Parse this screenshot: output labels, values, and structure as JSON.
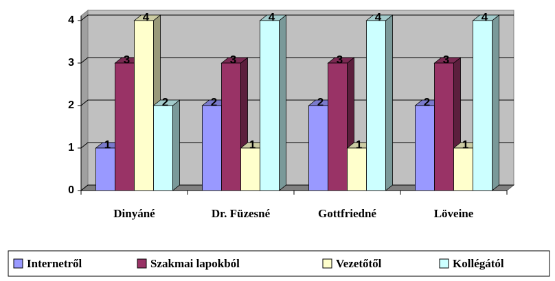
{
  "chart_data": {
    "type": "bar3d",
    "categories": [
      "Dinyáné",
      "Dr. Füzesné",
      "Gottfriedné",
      "Löveine"
    ],
    "series": [
      {
        "name": "Internetről",
        "color": "#9999ff",
        "values": [
          1,
          2,
          2,
          2
        ]
      },
      {
        "name": "Szakmai lapokból",
        "color": "#993366",
        "values": [
          3,
          3,
          3,
          3
        ]
      },
      {
        "name": "Vezetőtől",
        "color": "#ffffcc",
        "values": [
          4,
          1,
          1,
          1
        ]
      },
      {
        "name": "Kollégától",
        "color": "#ccffff",
        "values": [
          2,
          4,
          4,
          4
        ]
      }
    ],
    "ylim": [
      0,
      4
    ],
    "yticks": [
      0,
      1,
      2,
      3,
      4
    ],
    "grid": true,
    "data_labels": true,
    "legend": "bottom"
  }
}
